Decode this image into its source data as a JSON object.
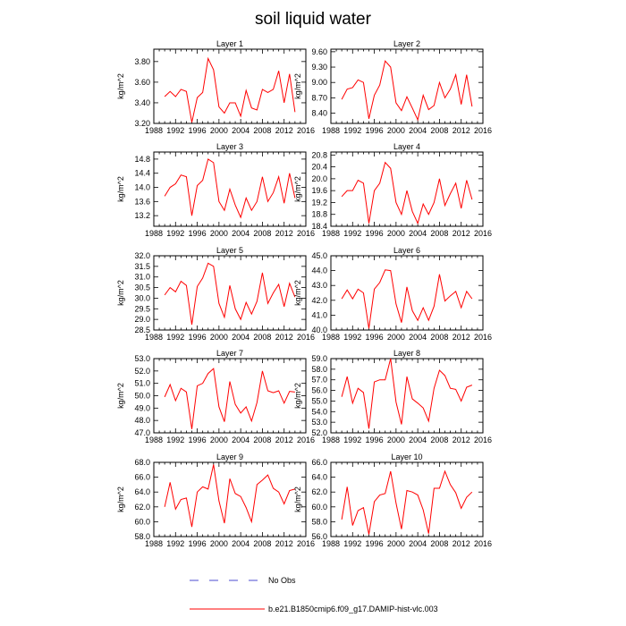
{
  "title": "soil liquid water",
  "colors": {
    "series": "#ff0000",
    "no_obs": "#4b4bd0",
    "axis": "#000000"
  },
  "legend": {
    "no_obs_label": "No Obs",
    "series_label": "b.e21.B1850cmip6.f09_g17.DAMIP-hist-vlc.003"
  },
  "chart_data": [
    {
      "type": "line",
      "title": "Layer 1",
      "ylabel": "kg/m^2",
      "xlim": [
        1988,
        2016
      ],
      "ylim": [
        3.2,
        3.92
      ],
      "xticks": [
        "1988",
        "1992",
        "1996",
        "2000",
        "2004",
        "2008",
        "2012",
        "2016"
      ],
      "yticks": [
        "3.20",
        "3.40",
        "3.60",
        "3.80"
      ],
      "series": [
        {
          "name": "b.e21.B1850cmip6.f09_g17.DAMIP-hist-vlc.003",
          "x": [
            1990,
            1991,
            1992,
            1993,
            1994,
            1995,
            1996,
            1997,
            1998,
            1999,
            2000,
            2001,
            2002,
            2003,
            2004,
            2005,
            2006,
            2007,
            2008,
            2009,
            2010,
            2011,
            2012,
            2013,
            2014
          ],
          "y": [
            3.46,
            3.51,
            3.46,
            3.53,
            3.51,
            3.21,
            3.45,
            3.5,
            3.83,
            3.72,
            3.36,
            3.3,
            3.4,
            3.4,
            3.27,
            3.52,
            3.35,
            3.33,
            3.53,
            3.5,
            3.53,
            3.71,
            3.4,
            3.68,
            3.31
          ]
        }
      ]
    },
    {
      "type": "line",
      "title": "Layer 2",
      "ylabel": "kg/m^2",
      "xlim": [
        1988,
        2016
      ],
      "ylim": [
        8.2,
        9.65
      ],
      "xticks": [
        "1988",
        "1992",
        "1996",
        "2000",
        "2004",
        "2008",
        "2012",
        "2016"
      ],
      "yticks": [
        "8.40",
        "8.70",
        "9.00",
        "9.30",
        "9.60"
      ],
      "series": [
        {
          "name": "b.e21.B1850cmip6.f09_g17.DAMIP-hist-vlc.003",
          "x": [
            1990,
            1991,
            1992,
            1993,
            1994,
            1995,
            1996,
            1997,
            1998,
            1999,
            2000,
            2001,
            2002,
            2003,
            2004,
            2005,
            2006,
            2007,
            2008,
            2009,
            2010,
            2011,
            2012,
            2013,
            2014
          ],
          "y": [
            8.67,
            8.87,
            8.9,
            9.05,
            9.0,
            8.29,
            8.75,
            8.95,
            9.42,
            9.3,
            8.6,
            8.45,
            8.72,
            8.5,
            8.27,
            8.75,
            8.47,
            8.55,
            9.0,
            8.7,
            8.87,
            9.15,
            8.57,
            9.15,
            8.53
          ]
        }
      ]
    },
    {
      "type": "line",
      "title": "Layer 3",
      "ylabel": "kg/m^2",
      "xlim": [
        1988,
        2016
      ],
      "ylim": [
        12.9,
        15.0
      ],
      "xticks": [
        "1988",
        "1992",
        "1996",
        "2000",
        "2004",
        "2008",
        "2012",
        "2016"
      ],
      "yticks": [
        "13.2",
        "13.6",
        "14.0",
        "14.4",
        "14.8"
      ],
      "series": [
        {
          "name": "b.e21.B1850cmip6.f09_g17.DAMIP-hist-vlc.003",
          "x": [
            1990,
            1991,
            1992,
            1993,
            1994,
            1995,
            1996,
            1997,
            1998,
            1999,
            2000,
            2001,
            2002,
            2003,
            2004,
            2005,
            2006,
            2007,
            2008,
            2009,
            2010,
            2011,
            2012,
            2013,
            2014
          ],
          "y": [
            13.75,
            14.0,
            14.1,
            14.35,
            14.3,
            13.2,
            14.05,
            14.2,
            14.8,
            14.7,
            13.6,
            13.35,
            13.95,
            13.5,
            13.15,
            13.7,
            13.35,
            13.6,
            14.3,
            13.6,
            13.85,
            14.3,
            13.55,
            14.4,
            13.7
          ]
        }
      ]
    },
    {
      "type": "line",
      "title": "Layer 4",
      "ylabel": "kg/m^2",
      "xlim": [
        1988,
        2016
      ],
      "ylim": [
        18.4,
        20.9
      ],
      "xticks": [
        "1988",
        "1992",
        "1996",
        "2000",
        "2004",
        "2008",
        "2012",
        "2016"
      ],
      "yticks": [
        "18.4",
        "18.8",
        "19.2",
        "19.6",
        "20.0",
        "20.4",
        "20.8"
      ],
      "series": [
        {
          "name": "b.e21.B1850cmip6.f09_g17.DAMIP-hist-vlc.003",
          "x": [
            1990,
            1991,
            1992,
            1993,
            1994,
            1995,
            1996,
            1997,
            1998,
            1999,
            2000,
            2001,
            2002,
            2003,
            2004,
            2005,
            2006,
            2007,
            2008,
            2009,
            2010,
            2011,
            2012,
            2013,
            2014
          ],
          "y": [
            19.4,
            19.6,
            19.6,
            19.95,
            19.85,
            18.5,
            19.6,
            19.85,
            20.55,
            20.35,
            19.2,
            18.8,
            19.6,
            18.9,
            18.5,
            19.15,
            18.8,
            19.2,
            20.0,
            19.1,
            19.5,
            19.85,
            19.0,
            19.95,
            19.3
          ]
        }
      ]
    },
    {
      "type": "line",
      "title": "Layer 5",
      "ylabel": "kg/m^2",
      "xlim": [
        1988,
        2016
      ],
      "ylim": [
        28.5,
        32.0
      ],
      "xticks": [
        "1988",
        "1992",
        "1996",
        "2000",
        "2004",
        "2008",
        "2012",
        "2016"
      ],
      "yticks": [
        "28.5",
        "29.0",
        "29.5",
        "30.0",
        "30.5",
        "31.0",
        "31.5",
        "32.0"
      ],
      "series": [
        {
          "name": "b.e21.B1850cmip6.f09_g17.DAMIP-hist-vlc.003",
          "x": [
            1990,
            1991,
            1992,
            1993,
            1994,
            1995,
            1996,
            1997,
            1998,
            1999,
            2000,
            2001,
            2002,
            2003,
            2004,
            2005,
            2006,
            2007,
            2008,
            2009,
            2010,
            2011,
            2012,
            2013,
            2014
          ],
          "y": [
            30.15,
            30.5,
            30.3,
            30.8,
            30.6,
            28.75,
            30.55,
            30.95,
            31.65,
            31.5,
            29.75,
            29.1,
            30.6,
            29.5,
            29.0,
            29.8,
            29.25,
            29.85,
            31.2,
            29.75,
            30.25,
            30.65,
            29.6,
            30.7,
            30.05
          ]
        }
      ]
    },
    {
      "type": "line",
      "title": "Layer 6",
      "ylabel": "kg/m^2",
      "xlim": [
        1988,
        2016
      ],
      "ylim": [
        40.0,
        45.0
      ],
      "xticks": [
        "1988",
        "1992",
        "1996",
        "2000",
        "2004",
        "2008",
        "2012",
        "2016"
      ],
      "yticks": [
        "40.0",
        "41.0",
        "42.0",
        "43.0",
        "44.0",
        "45.0"
      ],
      "series": [
        {
          "name": "b.e21.B1850cmip6.f09_g17.DAMIP-hist-vlc.003",
          "x": [
            1990,
            1991,
            1992,
            1993,
            1994,
            1995,
            1996,
            1997,
            1998,
            1999,
            2000,
            2001,
            2002,
            2003,
            2004,
            2005,
            2006,
            2007,
            2008,
            2009,
            2010,
            2011,
            2012,
            2013,
            2014
          ],
          "y": [
            42.1,
            42.7,
            42.1,
            42.75,
            42.5,
            40.1,
            42.75,
            43.2,
            44.05,
            44.0,
            41.75,
            40.5,
            42.9,
            41.3,
            40.65,
            41.5,
            40.65,
            41.6,
            43.75,
            41.95,
            42.3,
            42.6,
            41.5,
            42.6,
            42.1
          ]
        }
      ]
    },
    {
      "type": "line",
      "title": "Layer 7",
      "ylabel": "kg/m^2",
      "xlim": [
        1988,
        2016
      ],
      "ylim": [
        47.0,
        53.0
      ],
      "xticks": [
        "1988",
        "1992",
        "1996",
        "2000",
        "2004",
        "2008",
        "2012",
        "2016"
      ],
      "yticks": [
        "47.0",
        "48.0",
        "49.0",
        "50.0",
        "51.0",
        "52.0",
        "53.0"
      ],
      "series": [
        {
          "name": "b.e21.B1850cmip6.f09_g17.DAMIP-hist-vlc.003",
          "x": [
            1990,
            1991,
            1992,
            1993,
            1994,
            1995,
            1996,
            1997,
            1998,
            1999,
            2000,
            2001,
            2002,
            2003,
            2004,
            2005,
            2006,
            2007,
            2008,
            2009,
            2010,
            2011,
            2012,
            2013,
            2014
          ],
          "y": [
            49.9,
            50.9,
            49.6,
            50.6,
            50.3,
            47.3,
            50.8,
            51.0,
            51.8,
            52.2,
            49.1,
            47.9,
            51.15,
            49.3,
            48.6,
            49.1,
            47.95,
            49.45,
            52.0,
            50.4,
            50.25,
            50.4,
            49.4,
            50.35,
            50.3
          ]
        }
      ]
    },
    {
      "type": "line",
      "title": "Layer 8",
      "ylabel": "kg/m^2",
      "xlim": [
        1988,
        2016
      ],
      "ylim": [
        52.0,
        59.0
      ],
      "xticks": [
        "1988",
        "1992",
        "1996",
        "2000",
        "2004",
        "2008",
        "2012",
        "2016"
      ],
      "yticks": [
        "52.0",
        "53.0",
        "54.0",
        "55.0",
        "56.0",
        "57.0",
        "58.0",
        "59.0"
      ],
      "series": [
        {
          "name": "b.e21.B1850cmip6.f09_g17.DAMIP-hist-vlc.003",
          "x": [
            1990,
            1991,
            1992,
            1993,
            1994,
            1995,
            1996,
            1997,
            1998,
            1999,
            2000,
            2001,
            2002,
            2003,
            2004,
            2005,
            2006,
            2007,
            2008,
            2009,
            2010,
            2011,
            2012,
            2013,
            2014
          ],
          "y": [
            55.4,
            57.3,
            54.8,
            56.2,
            55.8,
            52.4,
            56.8,
            57.0,
            57.0,
            59.0,
            54.9,
            52.8,
            57.3,
            55.2,
            54.8,
            54.35,
            53.1,
            56.2,
            57.9,
            57.4,
            56.2,
            56.1,
            55.0,
            56.3,
            56.5
          ]
        }
      ]
    },
    {
      "type": "line",
      "title": "Layer 9",
      "ylabel": "kg/m^2",
      "xlim": [
        1988,
        2016
      ],
      "ylim": [
        58.0,
        68.0
      ],
      "xticks": [
        "1988",
        "1992",
        "1996",
        "2000",
        "2004",
        "2008",
        "2012",
        "2016"
      ],
      "yticks": [
        "58.0",
        "60.0",
        "62.0",
        "64.0",
        "66.0",
        "68.0"
      ],
      "series": [
        {
          "name": "b.e21.B1850cmip6.f09_g17.DAMIP-hist-vlc.003",
          "x": [
            1990,
            1991,
            1992,
            1993,
            1994,
            1995,
            1996,
            1997,
            1998,
            1999,
            2000,
            2001,
            2002,
            2003,
            2004,
            2005,
            2006,
            2007,
            2008,
            2009,
            2010,
            2011,
            2012,
            2013,
            2014
          ],
          "y": [
            62.0,
            65.3,
            61.7,
            63.0,
            63.2,
            59.3,
            64.0,
            64.7,
            64.4,
            67.7,
            62.8,
            59.8,
            65.8,
            63.8,
            63.4,
            61.9,
            60.0,
            65.0,
            65.6,
            66.3,
            64.5,
            64.0,
            62.4,
            64.2,
            64.4
          ]
        }
      ]
    },
    {
      "type": "line",
      "title": "Layer 10",
      "ylabel": "kg/m^2",
      "xlim": [
        1988,
        2016
      ],
      "ylim": [
        56.0,
        66.0
      ],
      "xticks": [
        "1988",
        "1992",
        "1996",
        "2000",
        "2004",
        "2008",
        "2012",
        "2016"
      ],
      "yticks": [
        "56.0",
        "58.0",
        "60.0",
        "62.0",
        "64.0",
        "66.0"
      ],
      "series": [
        {
          "name": "b.e21.B1850cmip6.f09_g17.DAMIP-hist-vlc.003",
          "x": [
            1990,
            1991,
            1992,
            1993,
            1994,
            1995,
            1996,
            1997,
            1998,
            1999,
            2000,
            2001,
            2002,
            2003,
            2004,
            2005,
            2006,
            2007,
            2008,
            2009,
            2010,
            2011,
            2012,
            2013,
            2014
          ],
          "y": [
            58.3,
            62.7,
            57.5,
            59.5,
            59.9,
            56.3,
            60.7,
            61.6,
            61.8,
            64.8,
            60.5,
            57.0,
            62.2,
            62.0,
            61.6,
            59.6,
            56.4,
            62.5,
            62.5,
            64.8,
            63.0,
            61.9,
            59.8,
            61.3,
            62.0
          ]
        }
      ]
    }
  ]
}
